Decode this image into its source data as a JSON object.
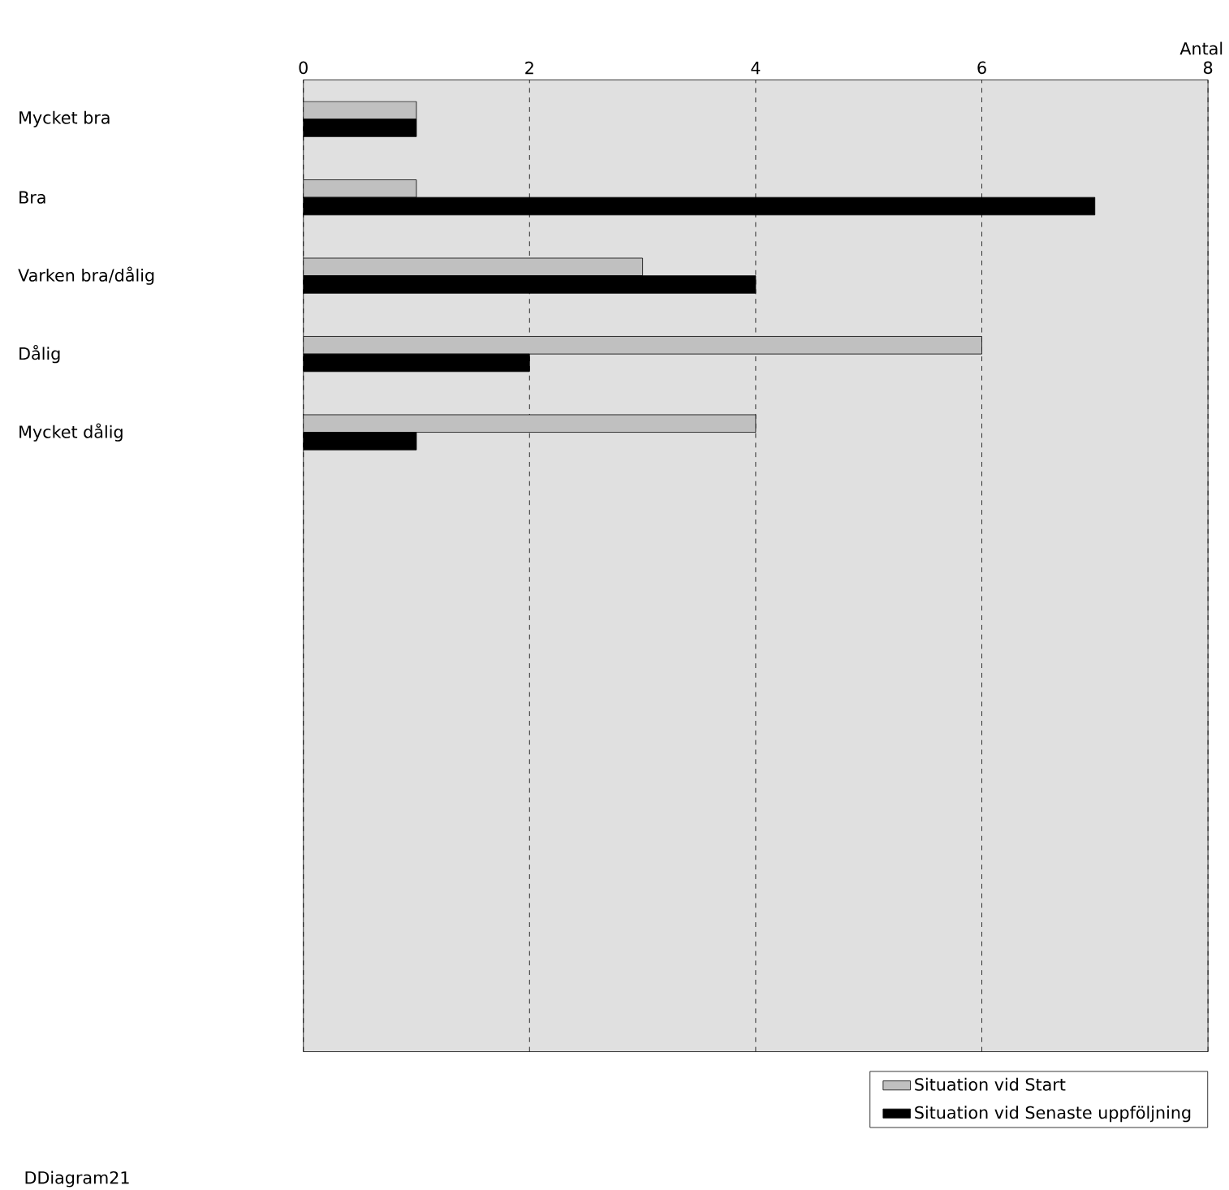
{
  "chart_data": {
    "type": "bar",
    "orientation": "horizontal",
    "xlabel": "Antal",
    "categories": [
      "Mycket bra",
      "Bra",
      "Varken bra/dålig",
      "Dålig",
      "Mycket dålig"
    ],
    "series": [
      {
        "name": "Situation vid Start",
        "color": "#c0c0c0",
        "values": [
          1,
          1,
          3,
          6,
          4
        ]
      },
      {
        "name": "Situation vid Senaste uppföljning",
        "color": "#000000",
        "values": [
          1,
          7,
          4,
          2,
          1
        ]
      }
    ],
    "xlim": [
      0,
      8
    ],
    "xticks": [
      0,
      2,
      4,
      6,
      8
    ],
    "grid": "x",
    "legend": "bottom right",
    "annotations": [
      "DDiagram21"
    ]
  }
}
